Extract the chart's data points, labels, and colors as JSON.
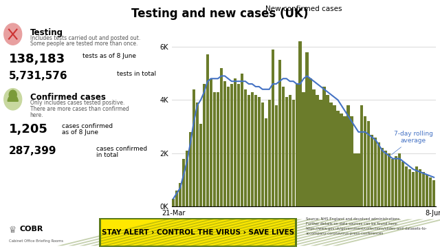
{
  "title": "Testing and new cases (UK)",
  "chart_title": "New confirmed cases",
  "bar_color": "#6B7C2B",
  "line_color": "#4472C4",
  "line_label": "7-day rolling\naverage",
  "x_start": "21-Mar",
  "x_end": "8-Jun",
  "y_ticks": [
    0,
    2000,
    4000,
    6000
  ],
  "y_tick_labels": [
    "0K",
    "2K",
    "4K",
    "6K"
  ],
  "testing_title": "Testing",
  "testing_sub1": "Includes tests carried out and posted out.",
  "testing_sub2": "Some people are tested more than once.",
  "stat1_num": "138,183",
  "stat1_label": "tests as of 8 June",
  "stat2_num": "5,731,576",
  "stat2_label": "tests in total",
  "confirmed_title": "Confirmed cases",
  "confirmed_sub1": "Only includes cases tested positive.",
  "confirmed_sub2": "There are more cases than confirmed",
  "confirmed_sub3": "here.",
  "stat3_num": "1,205",
  "stat3_label1": "cases confirmed",
  "stat3_label2": "as of 8 June",
  "stat4_num": "287,399",
  "stat4_label1": "cases confirmed",
  "stat4_label2": "in total",
  "footer_text": "STAY ALERT › CONTROL THE VIRUS › SAVE LIVES",
  "source_line1": "Source: NHS England and devolved administrations.",
  "source_line2": "Further details on data sources can be found here:",
  "source_line3": "https://www.gov.uk/government/collections/slides-and-datasets-to-",
  "source_line4": "accompany-coronavirus-press-conferences",
  "bar_values": [
    300,
    600,
    900,
    1800,
    2100,
    2800,
    4400,
    3900,
    3100,
    4600,
    5700,
    4800,
    4300,
    4300,
    5200,
    4700,
    4500,
    4600,
    4800,
    4600,
    5000,
    4400,
    4200,
    4300,
    4200,
    4100,
    3900,
    3300,
    4000,
    5900,
    3800,
    5500,
    4500,
    4100,
    4200,
    4000,
    4600,
    6200,
    4300,
    5800,
    4800,
    4400,
    4200,
    4000,
    4500,
    4200,
    3900,
    3800,
    3600,
    3500,
    3400,
    3800,
    3400,
    2000,
    2000,
    3800,
    3400,
    3200,
    2700,
    2600,
    2400,
    2200,
    2100,
    2000,
    1800,
    1900,
    2000,
    1700,
    1500,
    1400,
    1300,
    1500,
    1400,
    1300,
    1200,
    1100,
    1000
  ],
  "rolling_avg": [
    300,
    500,
    700,
    1200,
    1700,
    2400,
    3200,
    3800,
    4000,
    4300,
    4700,
    4800,
    4800,
    4800,
    4900,
    4900,
    4800,
    4700,
    4700,
    4700,
    4700,
    4700,
    4600,
    4600,
    4500,
    4500,
    4400,
    4400,
    4400,
    4600,
    4600,
    4700,
    4800,
    4800,
    4700,
    4700,
    4600,
    4600,
    4800,
    4900,
    4800,
    4700,
    4600,
    4500,
    4400,
    4300,
    4200,
    4100,
    4000,
    3800,
    3600,
    3400,
    3200,
    3000,
    2800,
    2800,
    2800,
    2700,
    2600,
    2500,
    2300,
    2100,
    2000,
    1900,
    1800,
    1800,
    1800,
    1700,
    1600,
    1500,
    1400,
    1350,
    1300,
    1250,
    1200,
    1150,
    1100
  ]
}
